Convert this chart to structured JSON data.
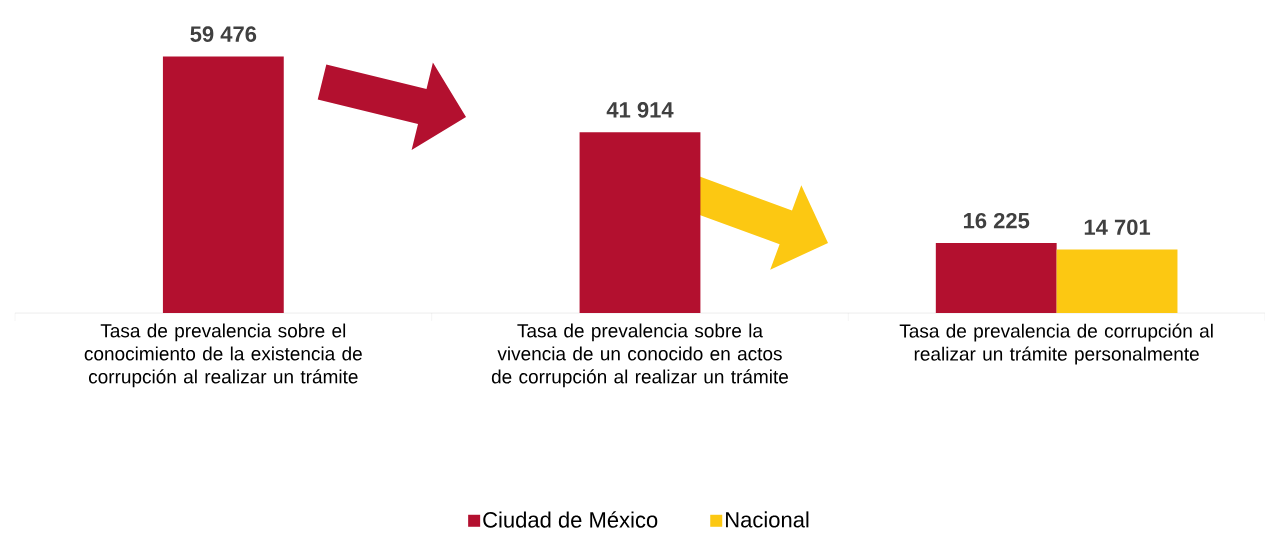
{
  "chart_data": {
    "type": "bar",
    "categories": [
      "Tasa de prevalencia sobre el conocimiento de la existencia de corrupción al realizar un trámite",
      "Tasa de prevalencia sobre la vivencia de un conocido en actos de corrupción al realizar un trámite",
      "Tasa de prevalencia de corrupción al realizar un trámite personalmente"
    ],
    "series": [
      {
        "name": "Ciudad de México",
        "color": "#b3102f",
        "values": [
          59476,
          41914,
          16225
        ],
        "value_labels": [
          "59 476",
          "41 914",
          "16 225"
        ]
      },
      {
        "name": "Nacional",
        "color": "#fcc812",
        "values": [
          null,
          null,
          14701
        ],
        "value_labels": [
          null,
          null,
          "14 701"
        ]
      }
    ],
    "legend": "bottom"
  }
}
